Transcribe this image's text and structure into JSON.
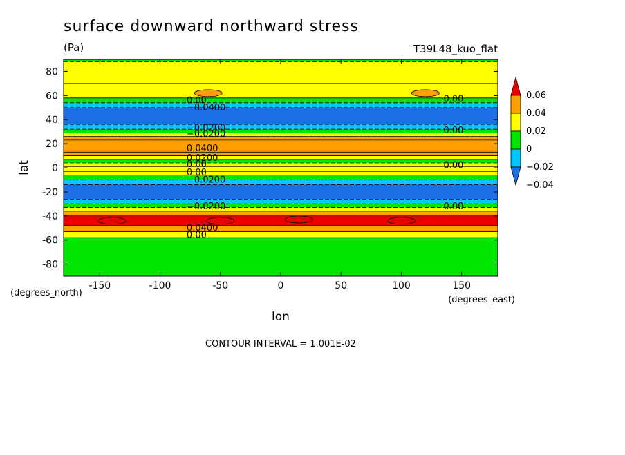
{
  "chart_data": {
    "type": "heatmap",
    "title": "surface downward northward stress",
    "units": "(Pa)",
    "dataset": "T39L48_kuo_flat",
    "xlabel": "lon",
    "ylabel": "lat",
    "x_units": "(degrees_east)",
    "y_units": "(degrees_north)",
    "xlim": [
      -180,
      180
    ],
    "ylim": [
      -90,
      90
    ],
    "x_ticks": [
      -150,
      -100,
      -50,
      0,
      50,
      100,
      150
    ],
    "y_ticks": [
      80,
      60,
      40,
      20,
      0,
      -20,
      -40,
      -60,
      -80
    ],
    "contour_interval_text": "CONTOUR INTERVAL = 1.001E-02",
    "colorbar": {
      "labels": [
        "0.06",
        "0.04",
        "0.02",
        "0",
        "−0.02",
        "−0.04"
      ],
      "levels": [
        -0.06,
        -0.04,
        -0.02,
        0,
        0.02,
        0.04,
        0.06
      ],
      "colors": [
        "#1e6ee6",
        "#00c8ff",
        "#00e600",
        "#ffff00",
        "#ffa000",
        "#e60000"
      ]
    },
    "zonal_bands": [
      {
        "lat_min": 88,
        "lat_max": 90,
        "value": -0.01
      },
      {
        "lat_min": 70,
        "lat_max": 88,
        "value": 0.01
      },
      {
        "lat_min": 58,
        "lat_max": 70,
        "value": 0.01
      },
      {
        "lat_min": 54,
        "lat_max": 58,
        "value": -0.01
      },
      {
        "lat_min": 50,
        "lat_max": 54,
        "value": -0.03
      },
      {
        "lat_min": 36,
        "lat_max": 50,
        "value": -0.05
      },
      {
        "lat_min": 32,
        "lat_max": 36,
        "value": -0.03
      },
      {
        "lat_min": 29,
        "lat_max": 32,
        "value": -0.01
      },
      {
        "lat_min": 26,
        "lat_max": 29,
        "value": 0.01
      },
      {
        "lat_min": 23,
        "lat_max": 26,
        "value": 0.03
      },
      {
        "lat_min": 13,
        "lat_max": 23,
        "value": 0.03
      },
      {
        "lat_min": 10,
        "lat_max": 13,
        "value": 0.03
      },
      {
        "lat_min": 7,
        "lat_max": 10,
        "value": 0.01
      },
      {
        "lat_min": 4,
        "lat_max": 7,
        "value": -0.01
      },
      {
        "lat_min": 1,
        "lat_max": 4,
        "value": 0.01
      },
      {
        "lat_min": -3,
        "lat_max": 1,
        "value": 0.01
      },
      {
        "lat_min": -6,
        "lat_max": -3,
        "value": 0.01
      },
      {
        "lat_min": -10,
        "lat_max": -6,
        "value": -0.01
      },
      {
        "lat_min": -14,
        "lat_max": -10,
        "value": -0.03
      },
      {
        "lat_min": -26,
        "lat_max": -14,
        "value": -0.05
      },
      {
        "lat_min": -30,
        "lat_max": -26,
        "value": -0.03
      },
      {
        "lat_min": -33,
        "lat_max": -30,
        "value": -0.01
      },
      {
        "lat_min": -36,
        "lat_max": -33,
        "value": 0.01
      },
      {
        "lat_min": -40,
        "lat_max": -36,
        "value": 0.03
      },
      {
        "lat_min": -48,
        "lat_max": -40,
        "value": 0.05
      },
      {
        "lat_min": -53,
        "lat_max": -48,
        "value": 0.03
      },
      {
        "lat_min": -58,
        "lat_max": -53,
        "value": 0.01
      },
      {
        "lat_min": -90,
        "lat_max": -58,
        "value": -0.01
      }
    ],
    "extrema_patches": [
      {
        "lon": -140,
        "lat": -44,
        "value": 0.07
      },
      {
        "lon": -50,
        "lat": -44,
        "value": 0.07
      },
      {
        "lon": 15,
        "lat": -43,
        "value": 0.07
      },
      {
        "lon": 100,
        "lat": -44,
        "value": 0.07
      },
      {
        "lon": -60,
        "lat": 62,
        "value": 0.03
      },
      {
        "lon": 120,
        "lat": 62,
        "value": 0.03
      }
    ],
    "contour_labels": [
      "0.00",
      "−0.0400",
      "−0.0200",
      "0.0400",
      "0.0200"
    ]
  }
}
